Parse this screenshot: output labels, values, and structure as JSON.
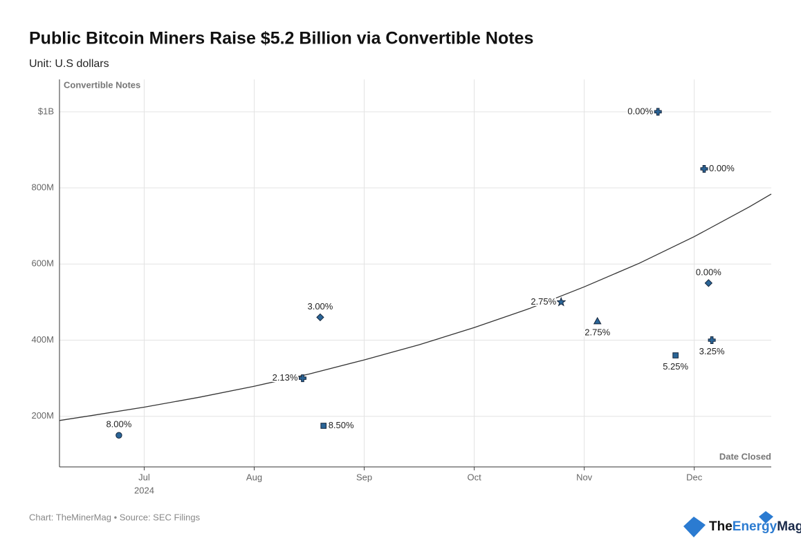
{
  "chart_data": {
    "type": "scatter",
    "title": "Public Bitcoin Miners Raise $5.2 Billion via Convertible Notes",
    "subtitle": "Unit: U.S dollars",
    "y_label": "Convertible Notes",
    "x_label": "Date Closed",
    "x_year_label": "2024",
    "footer": "Chart: TheMinerMag • Source: SEC Filings",
    "logo": [
      "The",
      "Energy",
      "Mag"
    ],
    "x": [
      6.77,
      8.44,
      8.6,
      8.63,
      10.79,
      11.12,
      11.67,
      11.83,
      12.09,
      12.13,
      12.16
    ],
    "values": [
      150,
      300,
      460,
      175,
      500,
      450,
      1000,
      360,
      850,
      550,
      400
    ],
    "point_labels": [
      "8.00%",
      "2.13%",
      "3.00%",
      "8.50%",
      "2.75%",
      "2.75%",
      "0.00%",
      "5.25%",
      "0.00%",
      "0.00%",
      "3.25%"
    ],
    "markers": [
      "circle",
      "plus",
      "diamond",
      "square",
      "star",
      "triangle",
      "plus",
      "square",
      "plus",
      "diamond",
      "plus"
    ],
    "color": "#2b6597",
    "trend": {
      "x": [
        6.23,
        6.5,
        7,
        7.5,
        8,
        8.5,
        9,
        9.5,
        10,
        10.5,
        11,
        11.5,
        12,
        12.5,
        12.7
      ],
      "values": [
        189,
        201,
        224,
        250,
        279,
        311,
        348,
        388,
        433,
        483,
        540,
        602,
        672,
        750,
        784
      ]
    },
    "xlim": [
      6.23,
      12.7
    ],
    "xticks": [
      {
        "value": 7,
        "label": "Jul"
      },
      {
        "value": 8,
        "label": "Aug"
      },
      {
        "value": 9,
        "label": "Sep"
      },
      {
        "value": 10,
        "label": "Oct"
      },
      {
        "value": 11,
        "label": "Nov"
      },
      {
        "value": 12,
        "label": "Dec"
      }
    ],
    "ylim": [
      67,
      1085
    ],
    "yticks": [
      {
        "value": 200,
        "label": "200M"
      },
      {
        "value": 400,
        "label": "400M"
      },
      {
        "value": 600,
        "label": "600M"
      },
      {
        "value": 800,
        "label": "800M"
      },
      {
        "value": 1000,
        "label": "$1B"
      }
    ],
    "grid": true
  }
}
